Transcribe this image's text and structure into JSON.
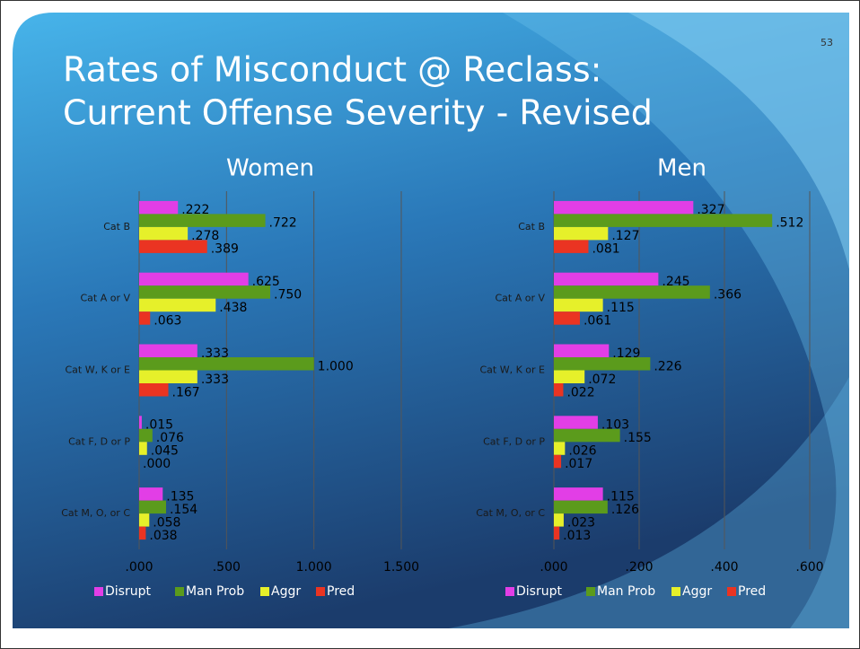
{
  "slide": {
    "title_lines": [
      "Rates of Misconduct @ Reclass:",
      "Current Offense Severity - Revised"
    ],
    "page_number": 53
  },
  "chart_data": [
    {
      "type": "hbar",
      "title": "Women",
      "categories": [
        "Cat B",
        "Cat A or V",
        "Cat W, K or E",
        "Cat F, D or P",
        "Cat M, O, or C"
      ],
      "series": [
        {
          "name": "Disrupt",
          "color": "#e23ee6",
          "values": [
            0.222,
            0.625,
            0.333,
            0.015,
            0.135
          ],
          "value_labels": [
            ".222",
            ".625",
            ".333",
            ".015",
            ".135"
          ]
        },
        {
          "name": "Man Prob",
          "color": "#5b9b1c",
          "values": [
            0.722,
            0.75,
            1.0,
            0.076,
            0.154
          ],
          "value_labels": [
            ".722",
            ".750",
            "1.000",
            ".076",
            ".154"
          ]
        },
        {
          "name": "Aggr",
          "color": "#e6f02a",
          "values": [
            0.278,
            0.438,
            0.333,
            0.045,
            0.058
          ],
          "value_labels": [
            ".278",
            ".438",
            ".333",
            ".045",
            ".058"
          ]
        },
        {
          "name": "Pred",
          "color": "#ea3422",
          "values": [
            0.389,
            0.063,
            0.167,
            0.0,
            0.038
          ],
          "value_labels": [
            ".389",
            ".063",
            ".167",
            ".000",
            ".038"
          ]
        }
      ],
      "xlim": [
        0,
        1.5
      ],
      "xticks": [
        {
          "value": 0,
          "label": ".000"
        },
        {
          "value": 0.5,
          "label": ".500"
        },
        {
          "value": 1.0,
          "label": "1.000"
        },
        {
          "value": 1.5,
          "label": "1.500"
        }
      ],
      "grid": true,
      "legend": "bottom"
    },
    {
      "type": "hbar",
      "title": "Men",
      "categories": [
        "Cat B",
        "Cat A or V",
        "Cat W, K or E",
        "Cat F, D or P",
        "Cat M, O, or C"
      ],
      "series": [
        {
          "name": "Disrupt",
          "color": "#e23ee6",
          "values": [
            0.327,
            0.245,
            0.129,
            0.103,
            0.115
          ],
          "value_labels": [
            ".327",
            ".245",
            ".129",
            ".103",
            ".115"
          ]
        },
        {
          "name": "Man Prob",
          "color": "#5b9b1c",
          "values": [
            0.512,
            0.366,
            0.226,
            0.155,
            0.126
          ],
          "value_labels": [
            ".512",
            ".366",
            ".226",
            ".155",
            ".126"
          ]
        },
        {
          "name": "Aggr",
          "color": "#e6f02a",
          "values": [
            0.127,
            0.115,
            0.072,
            0.026,
            0.023
          ],
          "value_labels": [
            ".127",
            ".115",
            ".072",
            ".026",
            ".023"
          ]
        },
        {
          "name": "Pred",
          "color": "#ea3422",
          "values": [
            0.081,
            0.061,
            0.022,
            0.017,
            0.013
          ],
          "value_labels": [
            ".081",
            ".061",
            ".022",
            ".017",
            ".013"
          ]
        }
      ],
      "xlim": [
        0,
        0.6
      ],
      "xticks": [
        {
          "value": 0,
          "label": ".000"
        },
        {
          "value": 0.2,
          "label": ".200"
        },
        {
          "value": 0.4,
          "label": ".400"
        },
        {
          "value": 0.6,
          "label": ".600"
        }
      ],
      "grid": true,
      "legend": "bottom"
    }
  ]
}
